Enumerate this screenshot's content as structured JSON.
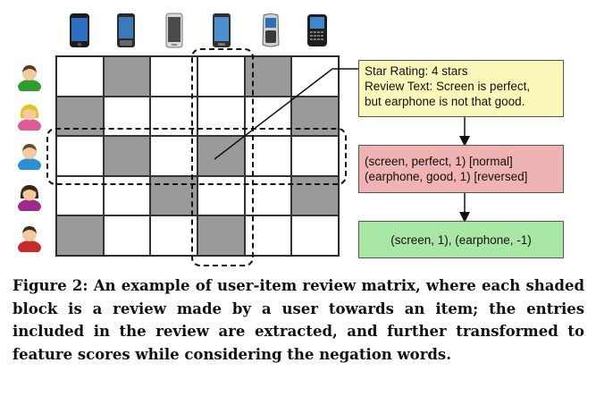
{
  "matrix": {
    "rows": 5,
    "cols": 6,
    "shaded": [
      [
        0,
        1
      ],
      [
        0,
        4
      ],
      [
        1,
        0
      ],
      [
        1,
        5
      ],
      [
        2,
        1
      ],
      [
        2,
        3
      ],
      [
        3,
        2
      ],
      [
        3,
        5
      ],
      [
        4,
        0
      ],
      [
        4,
        3
      ]
    ],
    "highlighted_row": 2,
    "highlighted_col": 3
  },
  "items": [
    {
      "icon": "smartphone-icon"
    },
    {
      "icon": "smartphone-icon"
    },
    {
      "icon": "smartphone-icon"
    },
    {
      "icon": "smartphone-icon"
    },
    {
      "icon": "feature-phone-icon"
    },
    {
      "icon": "qwerty-phone-icon"
    }
  ],
  "users": [
    {
      "icon": "user-icon",
      "color": "#2e9e2e"
    },
    {
      "icon": "user-icon",
      "color": "#e3c419"
    },
    {
      "icon": "user-icon",
      "color": "#2b8fd6"
    },
    {
      "icon": "user-icon",
      "color": "#9b2a8c"
    },
    {
      "icon": "user-icon",
      "color": "#c62a2a"
    }
  ],
  "review_box": {
    "line1": "Star Rating: 4 stars",
    "line2": "Review Text: Screen is perfect,",
    "line3": "but earphone is not that good.",
    "color": "#fbf7b8"
  },
  "extraction_box": {
    "line1": "(screen, perfect, 1) [normal]",
    "line2": "(earphone, good, 1) [reversed]",
    "color": "#efb3b3"
  },
  "score_box": {
    "line1": "(screen, 1), (earphone, -1)",
    "color": "#a8e7a4"
  },
  "caption": "Figure 2: An example of user-item review matrix, where each shaded block is a review made by a user towards an item; the entries included in the review are extracted, and further transformed to feature scores while considering the negation words."
}
